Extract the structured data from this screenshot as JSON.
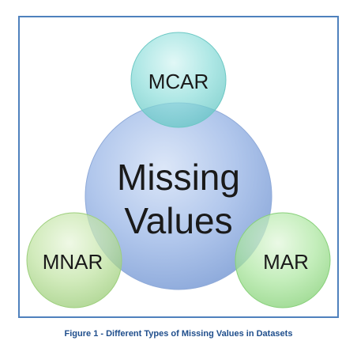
{
  "diagram": {
    "center": {
      "line1": "Missing",
      "line2": "Values"
    },
    "top": {
      "label": "MCAR"
    },
    "left": {
      "label": "MNAR"
    },
    "right": {
      "label": "MAR"
    }
  },
  "caption": "Figure 1 - Different Types of Missing Values in Datasets",
  "colors": {
    "frame": "#4f81bd",
    "center_fill": "#a4bde8",
    "top_fill": "#7fd8d6",
    "left_fill": "#b7de96",
    "right_fill": "#a6e39a",
    "caption": "#1f4e8c"
  }
}
